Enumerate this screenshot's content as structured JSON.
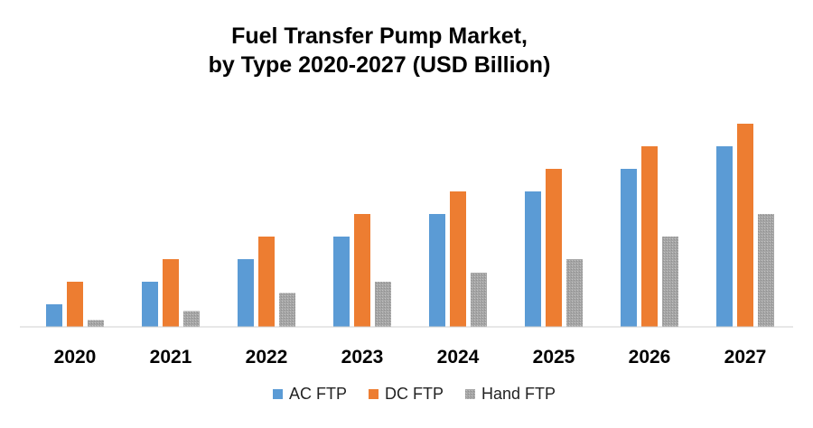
{
  "chart_data": {
    "type": "bar",
    "title": "Fuel Transfer Pump Market,",
    "subtitle": "by Type 2020-2027 (USD Billion)",
    "xlabel": "",
    "ylabel": "",
    "grid": false,
    "legend_position": "bottom",
    "categories": [
      "2020",
      "2021",
      "2022",
      "2023",
      "2024",
      "2025",
      "2026",
      "2027"
    ],
    "series": [
      {
        "name": "AC FTP",
        "color": "#5b9bd5",
        "values": [
          1.0,
          2.0,
          3.0,
          4.0,
          5.0,
          6.0,
          7.0,
          8.0
        ]
      },
      {
        "name": "DC FTP",
        "color": "#ed7d31",
        "values": [
          2.0,
          3.0,
          4.0,
          5.0,
          6.0,
          7.0,
          8.0,
          9.0
        ]
      },
      {
        "name": "Hand FTP",
        "color": "#a5a5a5",
        "values": [
          0.3,
          0.7,
          1.5,
          2.0,
          2.4,
          3.0,
          4.0,
          5.0
        ]
      }
    ],
    "ylim": [
      0,
      10
    ]
  }
}
